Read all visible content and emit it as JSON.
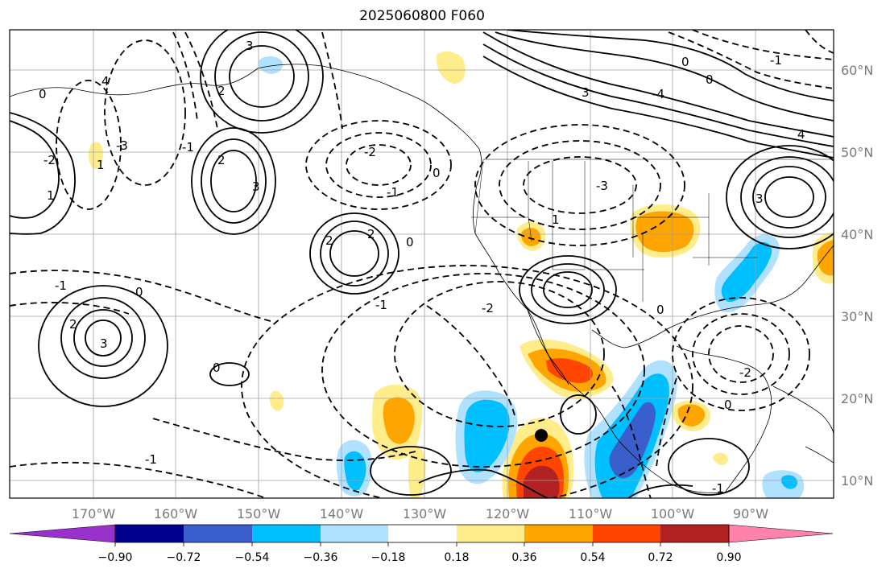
{
  "title": "2025060800 F060",
  "lon_labels": [
    "170°W",
    "160°W",
    "150°W",
    "140°W",
    "130°W",
    "120°W",
    "110°W",
    "100°W",
    "90°W"
  ],
  "lat_labels": [
    "60°N",
    "50°N",
    "40°N",
    "30°N",
    "20°N",
    "10°N"
  ],
  "colorbar": {
    "tick_labels": [
      "−0.90",
      "−0.72",
      "−0.54",
      "−0.36",
      "−0.18",
      "0.18",
      "0.36",
      "0.54",
      "0.72",
      "0.90"
    ],
    "colors": [
      "#9932cc",
      "#00008b",
      "#3a5fcd",
      "#00bfff",
      "#b0e2ff",
      "#ffffff",
      "#ffec8b",
      "#ffa500",
      "#ff4500",
      "#b22222",
      "#ff82ab"
    ]
  },
  "contour_labels": [
    "3",
    "2",
    "4",
    "0",
    "-3",
    "-2",
    "-1",
    "1",
    "2",
    "3",
    "-2",
    "-1",
    "0",
    "2",
    "2",
    "0",
    "1",
    "-3",
    "3",
    "0",
    "-4",
    "4",
    "-1",
    "0",
    "3",
    "1",
    "2",
    "-1",
    "0",
    "3",
    "-2",
    "-1",
    "0",
    "0",
    "-1",
    "-2",
    "0",
    "-1"
  ],
  "marker": {
    "name": "black-dot"
  }
}
